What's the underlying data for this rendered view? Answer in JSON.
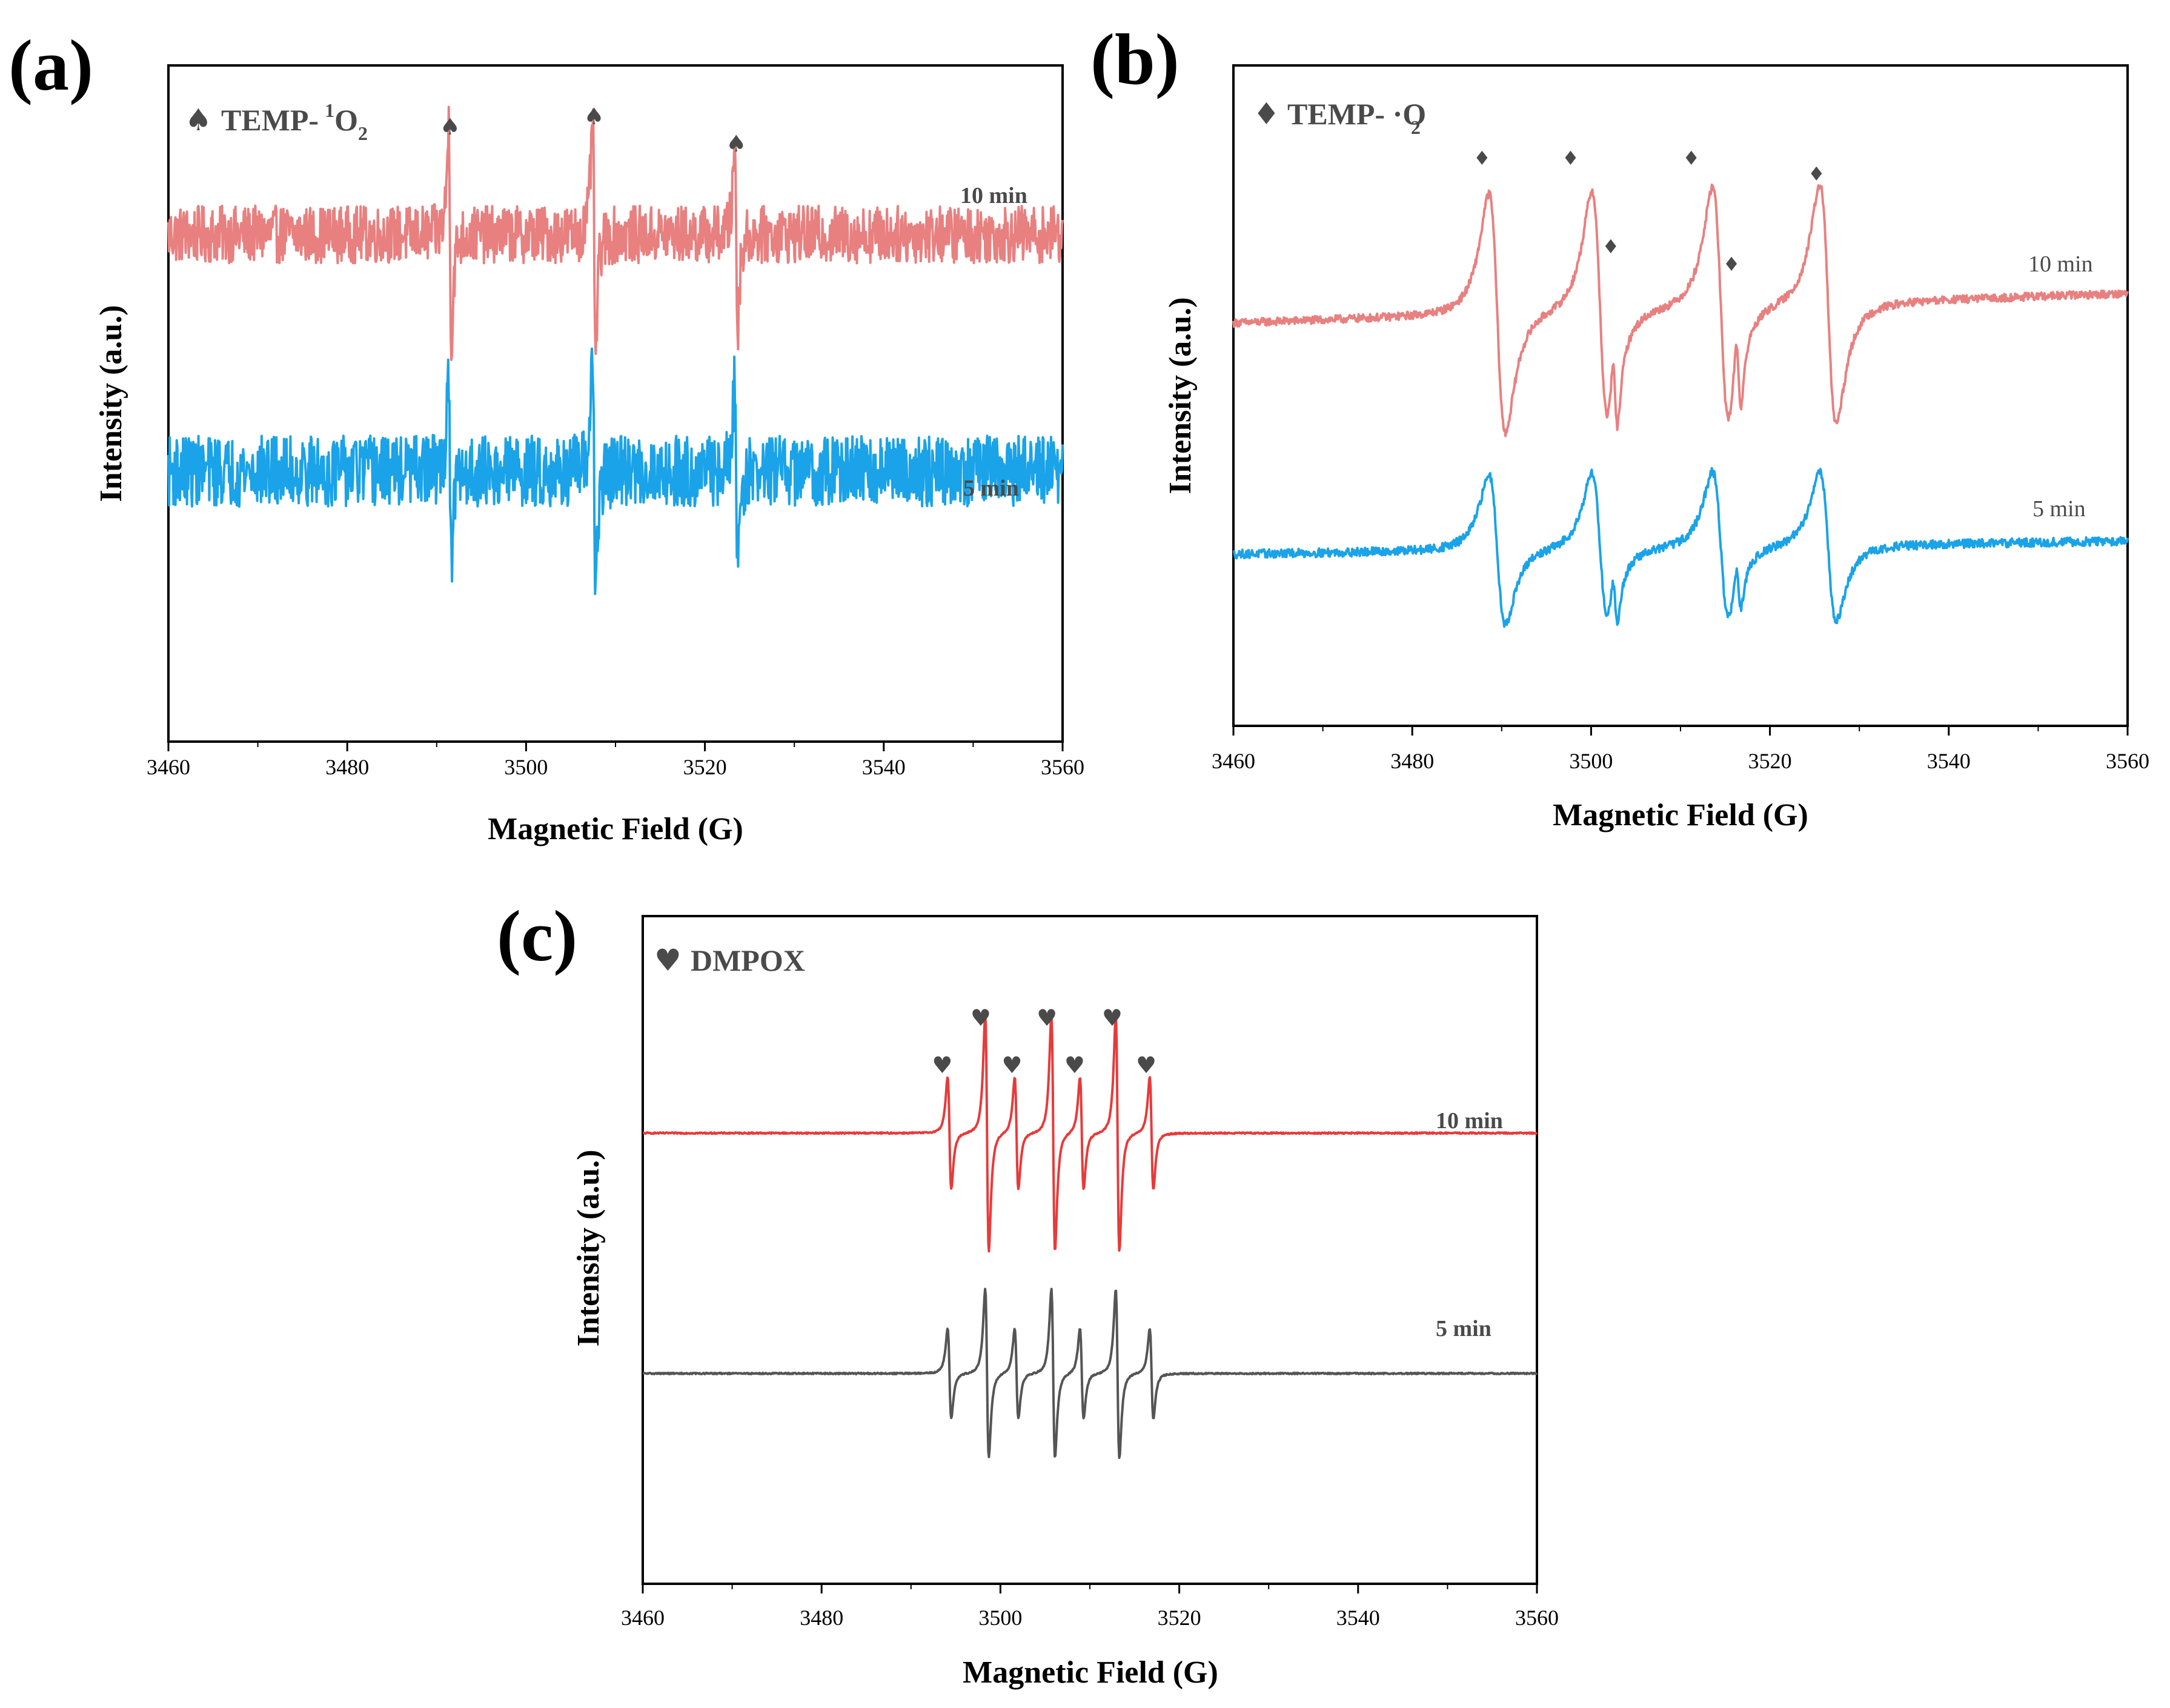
{
  "chart_data": [
    {
      "panel": "(a)",
      "type": "line",
      "legend_symbol": "♠",
      "legend_text": "TEMP-",
      "legend_super": "1",
      "legend_main": "O",
      "legend_sub": "2",
      "legend_color": "#4a4a4a",
      "xlabel": "Magnetic Field (G)",
      "ylabel": "Intensity (a.u.)",
      "xlim": [
        3460,
        3560
      ],
      "xticks": [
        "3460",
        "3480",
        "3500",
        "3520",
        "3540",
        "3560"
      ],
      "xtick_values": [
        3460,
        3480,
        3500,
        3520,
        3540,
        3560
      ],
      "ylim": [
        -10,
        10
      ],
      "series": [
        {
          "name": "10 min",
          "label": "10 min",
          "color": "#e88080",
          "baseline": 5,
          "noise": 0.85,
          "peaks": [
            {
              "x": 3491.5,
              "amp": 3.9,
              "w": 0.28
            },
            {
              "x": 3507.6,
              "amp": 4.2,
              "w": 0.3
            },
            {
              "x": 3523.5,
              "amp": 3.4,
              "w": 0.28
            }
          ]
        },
        {
          "name": "5 min",
          "label": "5 min",
          "color": "#1aa3e8",
          "baseline": -2,
          "noise": 1.05,
          "peaks": [
            {
              "x": 3491.5,
              "amp": 3.6,
              "w": 0.28
            },
            {
              "x": 3507.6,
              "amp": 4.5,
              "w": 0.3
            },
            {
              "x": 3523.5,
              "amp": 3.4,
              "w": 0.28
            }
          ]
        }
      ],
      "markers": [
        3491.5,
        3507.6,
        3523.5
      ],
      "marker_symbol": "♠"
    },
    {
      "panel": "(b)",
      "type": "line",
      "legend_symbol": "♦",
      "legend_text": "TEMP- ·O",
      "legend_super": "-",
      "legend_sub": "2",
      "legend_color": "#4a4a4a",
      "xlabel": "Magnetic Field (G)",
      "ylabel": "Intensity (a.u.)",
      "xlim": [
        3460,
        3560
      ],
      "xticks": [
        "3460",
        "3480",
        "3500",
        "3520",
        "3540",
        "3560"
      ],
      "xtick_values": [
        3460,
        3480,
        3500,
        3520,
        3540,
        3560
      ],
      "ylim": [
        -10,
        10
      ],
      "series": [
        {
          "name": "10 min",
          "label": "10 min",
          "color": "#e88080",
          "baseline": 2.2,
          "noise": 0.12,
          "drift": 0.9,
          "peaks": [
            {
              "x": 3489.5,
              "amp": 4.3,
              "w": 1.6
            },
            {
              "x": 3501.0,
              "amp": 4.3,
              "w": 1.6
            },
            {
              "x": 3502.7,
              "amp": 1.6,
              "w": 0.5
            },
            {
              "x": 3514.5,
              "amp": 4.3,
              "w": 1.6
            },
            {
              "x": 3516.5,
              "amp": 1.6,
              "w": 0.5
            },
            {
              "x": 3526.5,
              "amp": 4.3,
              "w": 1.6
            }
          ]
        },
        {
          "name": "5 min",
          "label": "5 min",
          "color": "#1aa3e8",
          "baseline": -4.8,
          "noise": 0.13,
          "drift": 0.4,
          "peaks": [
            {
              "x": 3489.5,
              "amp": 2.7,
              "w": 1.6
            },
            {
              "x": 3501.0,
              "amp": 2.7,
              "w": 1.6
            },
            {
              "x": 3502.7,
              "amp": 1.0,
              "w": 0.5
            },
            {
              "x": 3514.5,
              "amp": 2.7,
              "w": 1.6
            },
            {
              "x": 3516.5,
              "amp": 1.0,
              "w": 0.5
            },
            {
              "x": 3526.5,
              "amp": 2.7,
              "w": 1.6
            }
          ]
        }
      ],
      "markers": [
        3487.8,
        3497.7,
        3502.2,
        3511.2,
        3515.7,
        3525.2
      ],
      "marker_symbol": "♦"
    },
    {
      "panel": "(c)",
      "type": "line",
      "legend_symbol": "♥",
      "legend_text": "DMPOX",
      "legend_color": "#4a4a4a",
      "xlabel": "Magnetic Field (G)",
      "ylabel": "Intensity (a.u.)",
      "xlim": [
        3460,
        3560
      ],
      "xticks": [
        "3460",
        "3480",
        "3500",
        "3520",
        "3540",
        "3560"
      ],
      "xtick_values": [
        3460,
        3480,
        3500,
        3520,
        3540,
        3560
      ],
      "ylim": [
        -10,
        10
      ],
      "series": [
        {
          "name": "10 min",
          "label": "10 min",
          "color": "#e83a3a",
          "baseline": 3.5,
          "noise": 0.02,
          "peaks": [
            {
              "x": 3494.3,
              "amp": 2.0,
              "w": 0.35
            },
            {
              "x": 3498.5,
              "amp": 4.2,
              "w": 0.35
            },
            {
              "x": 3501.8,
              "amp": 2.0,
              "w": 0.35
            },
            {
              "x": 3505.9,
              "amp": 4.2,
              "w": 0.35
            },
            {
              "x": 3509.1,
              "amp": 2.0,
              "w": 0.35
            },
            {
              "x": 3513.1,
              "amp": 4.2,
              "w": 0.35
            },
            {
              "x": 3516.9,
              "amp": 2.0,
              "w": 0.35
            }
          ]
        },
        {
          "name": "5 min",
          "label": "5 min",
          "color": "#555555",
          "baseline": -3.7,
          "noise": 0.02,
          "peaks": [
            {
              "x": 3494.3,
              "amp": 1.6,
              "w": 0.35
            },
            {
              "x": 3498.5,
              "amp": 3.0,
              "w": 0.35
            },
            {
              "x": 3501.8,
              "amp": 1.6,
              "w": 0.35
            },
            {
              "x": 3505.9,
              "amp": 3.0,
              "w": 0.35
            },
            {
              "x": 3509.1,
              "amp": 1.6,
              "w": 0.35
            },
            {
              "x": 3513.1,
              "amp": 3.0,
              "w": 0.35
            },
            {
              "x": 3516.9,
              "amp": 1.6,
              "w": 0.35
            }
          ]
        }
      ],
      "markers": [
        3493.5,
        3497.8,
        3501.3,
        3505.2,
        3508.3,
        3512.5,
        3516.3
      ],
      "marker_levels": [
        0,
        1,
        0,
        1,
        0,
        1,
        0
      ],
      "marker_symbol": "♥"
    }
  ]
}
